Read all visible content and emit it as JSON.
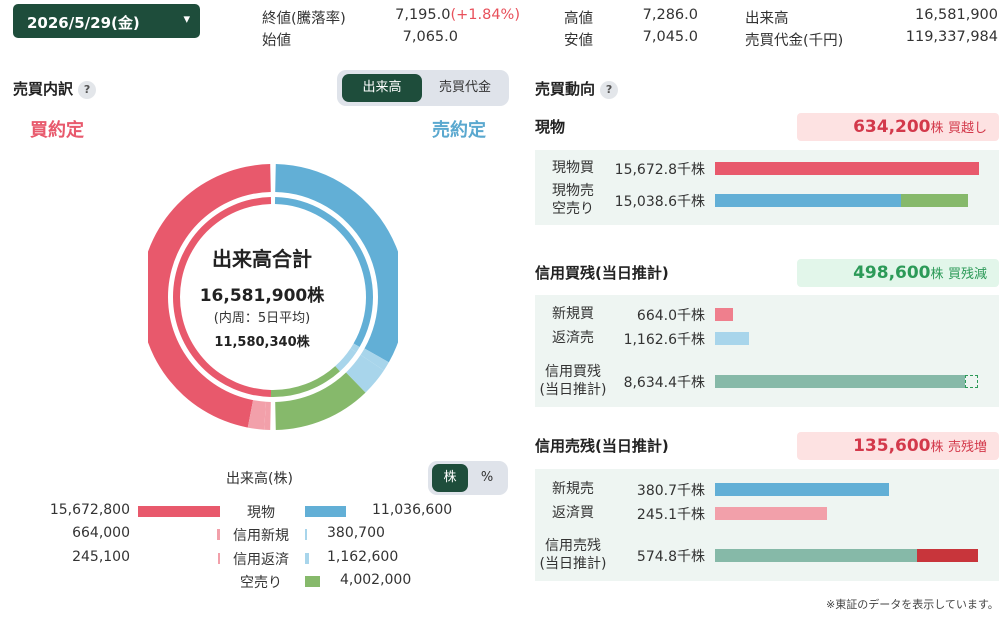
{
  "header": {
    "date": "2026/5/29(金)",
    "stats": {
      "close_label": "終値(騰落率)",
      "close_value": "7,195.0",
      "close_change": "(+1.84%)",
      "open_label": "始値",
      "open_value": "7,065.0",
      "high_label": "高値",
      "high_value": "7,286.0",
      "low_label": "安値",
      "low_value": "7,045.0",
      "volume_label": "出来高",
      "volume_value": "16,581,900",
      "turnover_label": "売買代金(千円)",
      "turnover_value": "119,337,984"
    }
  },
  "breakdown": {
    "title": "売買内訳",
    "help": "?",
    "toggle": {
      "option1": "出来高",
      "option2": "売買代金",
      "active": "出来高"
    },
    "buy_label": "買約定",
    "sell_label": "売約定",
    "center": {
      "title": "出来高合計",
      "total": "16,581,900株",
      "inner_note": "(内周：5日平均)",
      "avg": "11,580,340株"
    },
    "donut": {
      "outer": {
        "genbutsu_buy": 15672800,
        "shinki_buy": 664000,
        "hensai_buy": 245100,
        "genbutsu_sell": 11036600,
        "shinki_sell": 380700,
        "hensai_sell": 1162600,
        "karauri": 4002000
      },
      "inner_buy_fraction": 0.5,
      "inner_sell_genbutsu_fraction": 0.33,
      "inner_sell_shinki_fraction": 0.01,
      "inner_sell_hensai_fraction": 0.04,
      "inner_sell_karauri_fraction": 0.12
    },
    "legend": {
      "title": "出来高(株)",
      "unit_toggle": {
        "option1": "株",
        "option2": "%",
        "active": "株"
      },
      "rows": [
        {
          "left": "15,672,800",
          "name": "現物",
          "right": "11,036,600"
        },
        {
          "left": "664,000",
          "name": "信用新規",
          "right": "380,700"
        },
        {
          "left": "245,100",
          "name": "信用返済",
          "right": "1,162,600"
        },
        {
          "left": "",
          "name": "空売り",
          "right": "4,002,000"
        }
      ]
    },
    "colors": {
      "buy": "#e8596c",
      "buy_light": "#f2a0aa",
      "sell": "#62afd6",
      "sell_light": "#a8d5eb",
      "karauri": "#86b96b"
    }
  },
  "trend": {
    "title": "売買動向",
    "help": "?",
    "genbutsu": {
      "title": "現物",
      "summary_num": "634,200",
      "summary_unit": "株",
      "summary_text": "買越し",
      "rows": [
        {
          "label": "現物買",
          "value": "15,672.8千株"
        },
        {
          "label": "現物売\n空売り",
          "value": "15,038.6千株"
        }
      ]
    },
    "margin_buy": {
      "title": "信用買残(当日推計)",
      "summary_num": "498,600",
      "summary_unit": "株",
      "summary_text": "買残減",
      "rows": [
        {
          "label": "新規買",
          "value": "664.0千株"
        },
        {
          "label": "返済売",
          "value": "1,162.6千株"
        },
        {
          "label": "信用買残\n(当日推計)",
          "value": "8,634.4千株"
        }
      ]
    },
    "margin_sell": {
      "title": "信用売残(当日推計)",
      "summary_num": "135,600",
      "summary_unit": "株",
      "summary_text": "売残増",
      "rows": [
        {
          "label": "新規売",
          "value": "380.7千株"
        },
        {
          "label": "返済買",
          "value": "245.1千株"
        },
        {
          "label": "信用売残\n(当日推計)",
          "value": "574.8千株"
        }
      ]
    },
    "footnote": "※東証のデータを表示しています。"
  }
}
